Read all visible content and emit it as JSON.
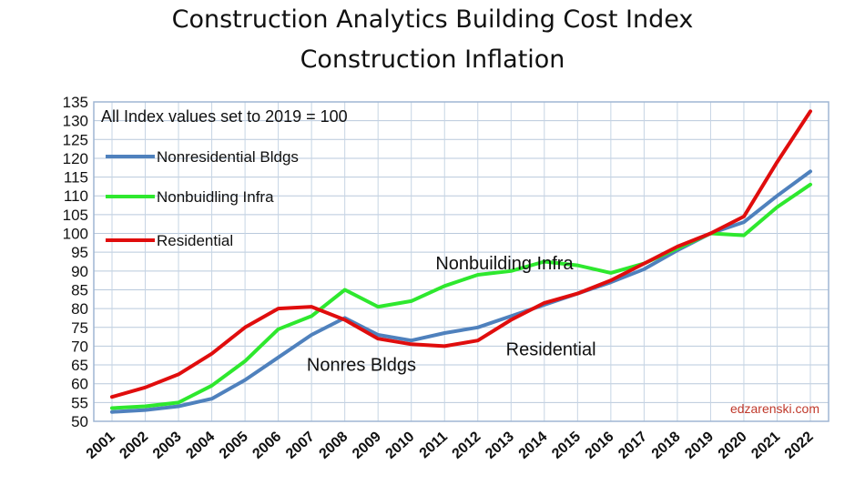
{
  "chart_data": {
    "type": "line",
    "title": "Construction Analytics Building Cost Index",
    "subtitle": "Construction Inflation",
    "note": "All Index values set to 2019 = 100",
    "credit": "edzarenski.com",
    "x": [
      "2001",
      "2002",
      "2003",
      "2004",
      "2005",
      "2006",
      "2007",
      "2008",
      "2009",
      "2010",
      "2011",
      "2012",
      "2013",
      "2014",
      "2015",
      "2016",
      "2017",
      "2018",
      "2019",
      "2020",
      "2021",
      "2022"
    ],
    "ylim": [
      50,
      135
    ],
    "yticks": [
      50,
      55,
      60,
      65,
      70,
      75,
      80,
      85,
      90,
      95,
      100,
      105,
      110,
      115,
      120,
      125,
      130,
      135
    ],
    "grid": true,
    "legend_position": "top-left",
    "series": [
      {
        "name": "Nonresidential Bldgs",
        "color": "#4f81bd",
        "values": [
          52.5,
          53,
          54,
          56,
          61,
          67,
          73,
          77.5,
          73,
          71.5,
          73.5,
          75,
          78,
          81,
          84,
          87,
          90.5,
          95.5,
          100,
          103,
          110,
          116.5
        ]
      },
      {
        "name": "Nonbuidling Infra",
        "color": "#2ee82e",
        "values": [
          53.5,
          54,
          55,
          59.5,
          66,
          74.5,
          78,
          85,
          80.5,
          82,
          86,
          89,
          90,
          92.5,
          91.5,
          89.5,
          92,
          96,
          100,
          99.5,
          107,
          113
        ]
      },
      {
        "name": "Residential",
        "color": "#e00d0d",
        "values": [
          56.5,
          59,
          62.5,
          68,
          75,
          80,
          80.5,
          77,
          72,
          70.5,
          70,
          71.5,
          77,
          81.5,
          84,
          87.5,
          92,
          96.5,
          100,
          104.5,
          119,
          132.5
        ]
      }
    ],
    "annotations": [
      {
        "text": "Nonbuilding Infra",
        "x": 2012.8,
        "y": 90.5
      },
      {
        "text": "Nonres Bldgs",
        "x": 2008.5,
        "y": 63.5
      },
      {
        "text": "Residential",
        "x": 2014.2,
        "y": 67.5
      }
    ]
  }
}
